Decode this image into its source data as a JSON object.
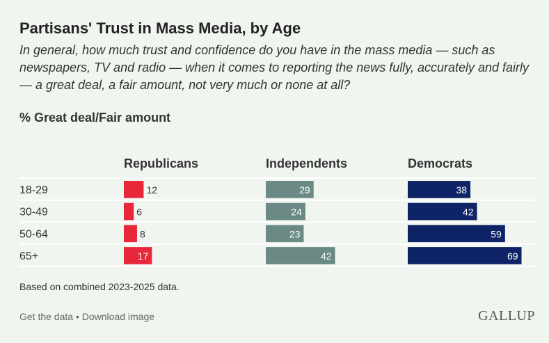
{
  "title": "Partisans' Trust in Mass Media, by Age",
  "subtitle": "In general, how much trust and confidence do you have in the mass media — such as newspapers, TV and radio — when it comes to reporting the news fully, accurately and fairly — a great deal, a fair amount, not very much or none at all?",
  "metric_label": "% Great deal/Fair amount",
  "note": "Based on combined 2023-2025 data.",
  "footer": {
    "get_data": "Get the data",
    "separator": "•",
    "download": "Download image",
    "logo": "GALLUP"
  },
  "chart_data": {
    "type": "bar",
    "orientation": "horizontal",
    "categories": [
      "18-29",
      "30-49",
      "50-64",
      "65+"
    ],
    "series": [
      {
        "name": "Republicans",
        "values": [
          12,
          6,
          8,
          17
        ],
        "color": "#e8283a"
      },
      {
        "name": "Independents",
        "values": [
          29,
          24,
          23,
          42
        ],
        "color": "#6b8a85"
      },
      {
        "name": "Democrats",
        "values": [
          38,
          42,
          59,
          69
        ],
        "color": "#0e2466"
      }
    ],
    "xlim": [
      0,
      100
    ],
    "grid": false,
    "data_labels": true
  }
}
